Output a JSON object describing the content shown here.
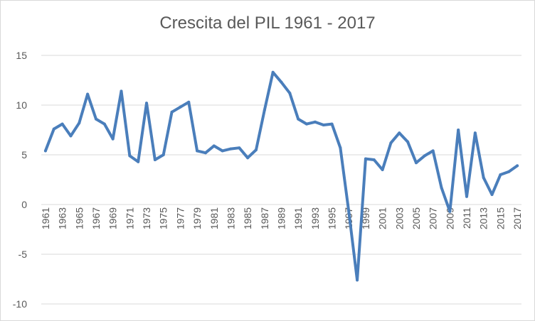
{
  "chart_data": {
    "type": "line",
    "title": "Crescita del PIL 1961 - 2017",
    "xlabel": "",
    "ylabel": "",
    "ylim": [
      -10,
      15
    ],
    "yticks": [
      -10,
      -5,
      0,
      5,
      10,
      15
    ],
    "x_tick_labels": [
      "1961",
      "1963",
      "1965",
      "1967",
      "1969",
      "1971",
      "1973",
      "1975",
      "1977",
      "1979",
      "1981",
      "1983",
      "1985",
      "1987",
      "1989",
      "1991",
      "1993",
      "1995",
      "1997",
      "1999",
      "2001",
      "2003",
      "2005",
      "2007",
      "2009",
      "2011",
      "2013",
      "2015",
      "2017"
    ],
    "grid": true,
    "legend": "none",
    "line_color": "#4a7ebb",
    "x": [
      1961,
      1962,
      1963,
      1964,
      1965,
      1966,
      1967,
      1968,
      1969,
      1970,
      1971,
      1972,
      1973,
      1974,
      1975,
      1976,
      1977,
      1978,
      1979,
      1980,
      1981,
      1982,
      1983,
      1984,
      1985,
      1986,
      1987,
      1988,
      1989,
      1990,
      1991,
      1992,
      1993,
      1994,
      1995,
      1996,
      1997,
      1998,
      1999,
      2000,
      2001,
      2002,
      2003,
      2004,
      2005,
      2006,
      2007,
      2008,
      2009,
      2010,
      2011,
      2012,
      2013,
      2014,
      2015,
      2016,
      2017
    ],
    "series": [
      {
        "values": [
          5.4,
          7.6,
          8.1,
          6.9,
          8.2,
          11.1,
          8.6,
          8.1,
          6.6,
          11.4,
          4.9,
          4.3,
          10.2,
          4.5,
          5.0,
          9.3,
          9.8,
          10.3,
          5.4,
          5.2,
          5.9,
          5.4,
          5.6,
          5.7,
          4.7,
          5.5,
          9.5,
          13.3,
          12.3,
          11.2,
          8.6,
          8.1,
          8.3,
          8.0,
          8.1,
          5.7,
          -0.7,
          -7.6,
          4.6,
          4.5,
          3.5,
          6.2,
          7.2,
          6.3,
          4.2,
          4.9,
          5.4,
          1.7,
          -0.7,
          7.5,
          0.8,
          7.2,
          2.7,
          1.0,
          3.0,
          3.3,
          3.9
        ]
      }
    ]
  }
}
